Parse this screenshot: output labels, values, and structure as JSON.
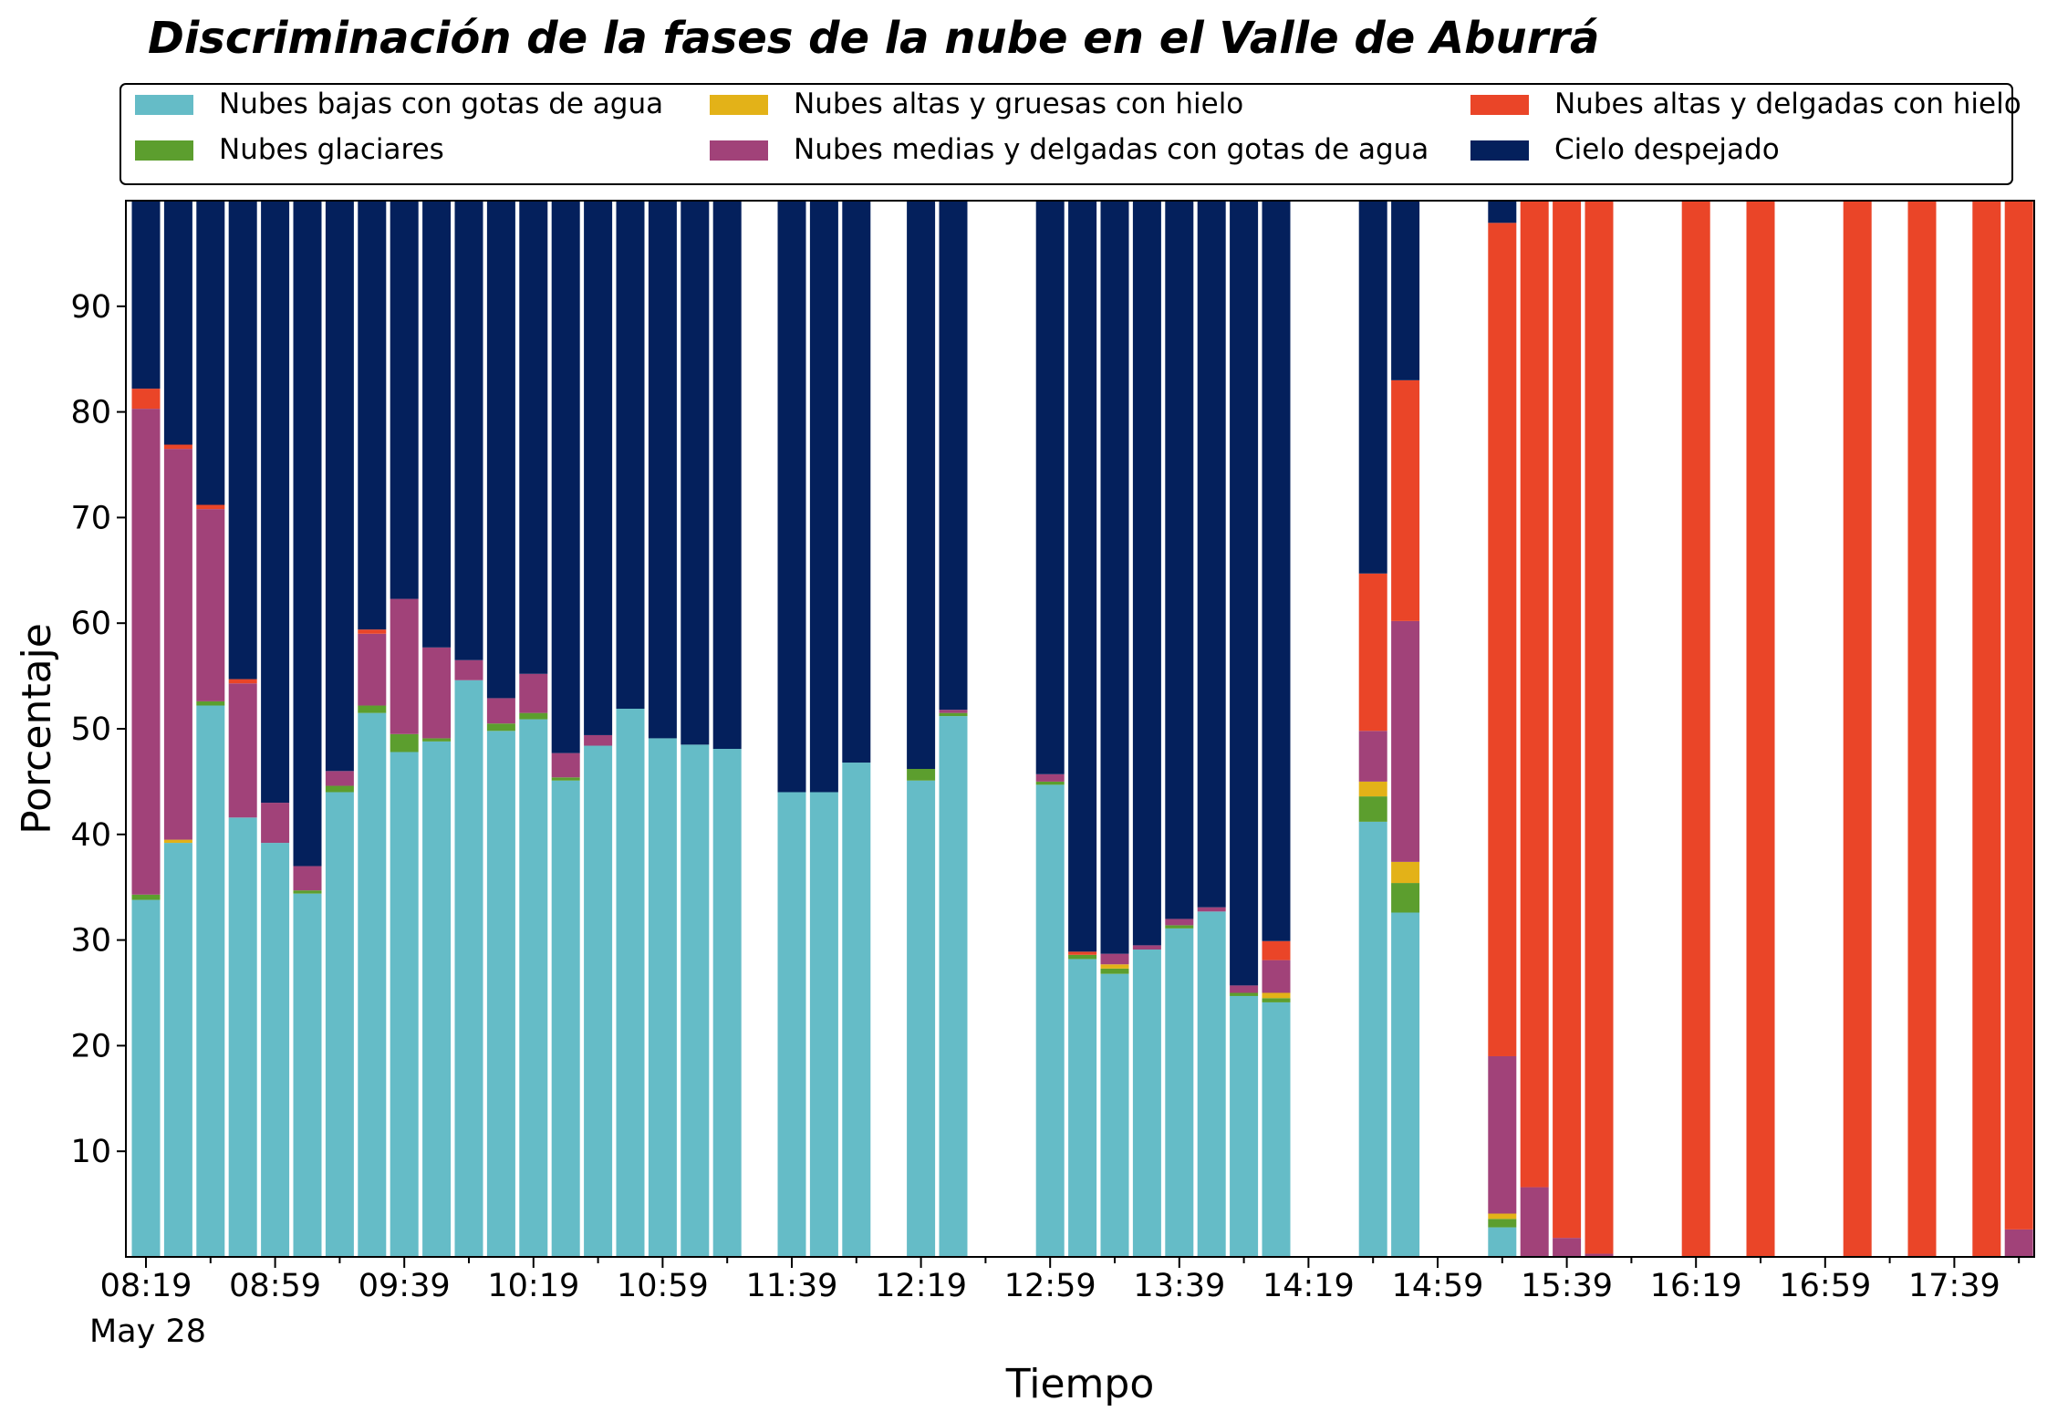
{
  "chart_data": {
    "type": "bar",
    "stacked": true,
    "title": "Discriminación de la fases de la nube en el Valle de Aburrá",
    "xlabel": "Tiempo",
    "ylabel": "Porcentaje",
    "date_label": "May 28",
    "ylim": [
      0,
      100
    ],
    "yticks": [
      10,
      20,
      30,
      40,
      50,
      60,
      70,
      80,
      90
    ],
    "grid": false,
    "legend_placement": "top",
    "x": [
      "08:19",
      "08:29",
      "08:39",
      "08:49",
      "08:59",
      "09:09",
      "09:19",
      "09:29",
      "09:39",
      "09:49",
      "09:59",
      "10:09",
      "10:19",
      "10:29",
      "10:39",
      "10:49",
      "10:59",
      "11:09",
      "11:19",
      "11:29",
      "11:39",
      "11:49",
      "11:59",
      "12:09",
      "12:19",
      "12:29",
      "12:39",
      "12:49",
      "12:59",
      "13:09",
      "13:19",
      "13:29",
      "13:39",
      "13:49",
      "13:59",
      "14:09",
      "14:19",
      "14:29",
      "14:39",
      "14:49",
      "14:59",
      "15:09",
      "15:19",
      "15:29",
      "15:39",
      "15:49",
      "15:59",
      "16:09",
      "16:19",
      "16:29",
      "16:39",
      "16:49",
      "16:59",
      "17:09",
      "17:19",
      "17:29",
      "17:39",
      "17:49",
      "17:59",
      "18:09"
    ],
    "xticks": [
      "08:19",
      "08:59",
      "09:39",
      "10:19",
      "10:59",
      "11:39",
      "12:19",
      "12:59",
      "13:39",
      "14:19",
      "14:59",
      "15:39",
      "16:19",
      "16:59",
      "17:39"
    ],
    "series": [
      {
        "name": "Nubes bajas con gotas de agua",
        "color": "#65bcc7",
        "values": [
          33.8,
          39.2,
          52.2,
          41.6,
          39.2,
          34.4,
          44.0,
          51.5,
          47.8,
          48.8,
          54.6,
          49.8,
          50.9,
          45.1,
          48.4,
          51.9,
          49.1,
          48.5,
          48.1,
          null,
          44.0,
          44.0,
          46.8,
          null,
          45.1,
          51.2,
          null,
          null,
          44.7,
          28.2,
          26.8,
          29.1,
          31.1,
          32.7,
          24.7,
          24.1,
          null,
          null,
          41.2,
          32.6,
          null,
          null,
          2.8,
          0,
          0,
          0,
          null,
          null,
          0,
          null,
          0,
          null,
          null,
          0,
          null,
          0,
          null,
          0,
          0,
          null
        ]
      },
      {
        "name": "Nubes glaciares",
        "color": "#5c9e2e",
        "values": [
          0.5,
          0,
          0.4,
          0,
          0,
          0.3,
          0.6,
          0.7,
          1.7,
          0.3,
          0,
          0.7,
          0.6,
          0.3,
          0,
          0,
          0,
          0,
          0,
          null,
          0,
          0,
          0,
          null,
          1.1,
          0.3,
          null,
          null,
          0.3,
          0.4,
          0.5,
          0,
          0.3,
          0,
          0.3,
          0.4,
          null,
          null,
          2.4,
          2.8,
          null,
          null,
          0.8,
          0,
          0,
          0,
          null,
          null,
          0,
          null,
          0,
          null,
          null,
          0,
          null,
          0,
          null,
          0,
          0,
          null
        ]
      },
      {
        "name": "Nubes altas y gruesas con hielo",
        "color": "#e3b218",
        "values": [
          0,
          0.3,
          0,
          0,
          0,
          0,
          0,
          0,
          0,
          0,
          0,
          0,
          0,
          0,
          0,
          0,
          0,
          0,
          0,
          null,
          0,
          0,
          0,
          null,
          0,
          0,
          null,
          null,
          0,
          0,
          0.4,
          0,
          0,
          0,
          0,
          0.5,
          null,
          null,
          1.4,
          2.0,
          null,
          null,
          0.5,
          0,
          0,
          0,
          null,
          null,
          0,
          null,
          0,
          null,
          null,
          0,
          null,
          0,
          null,
          0,
          0,
          null
        ]
      },
      {
        "name": "Nubes medias y delgadas con gotas de agua",
        "color": "#a14279",
        "values": [
          46.0,
          37.0,
          18.2,
          12.7,
          3.8,
          2.3,
          1.4,
          6.8,
          12.8,
          8.6,
          1.9,
          2.4,
          3.7,
          2.3,
          1.0,
          0,
          0,
          0,
          0,
          null,
          0,
          0,
          0,
          null,
          0,
          0.3,
          null,
          null,
          0.7,
          0,
          1.0,
          0.4,
          0.6,
          0.4,
          0.7,
          3.1,
          null,
          null,
          4.8,
          22.8,
          null,
          null,
          14.9,
          6.6,
          1.8,
          0.3,
          null,
          null,
          0,
          null,
          0,
          null,
          null,
          0,
          null,
          0,
          null,
          0,
          2.6,
          null
        ]
      },
      {
        "name": "Nubes altas y delgadas con hielo",
        "color": "#ea4528",
        "values": [
          1.9,
          0.4,
          0.4,
          0.4,
          0,
          0,
          0,
          0.4,
          0,
          0,
          0,
          0,
          0,
          0,
          0,
          0,
          0,
          0,
          0,
          null,
          0,
          0,
          0,
          null,
          0,
          0,
          null,
          null,
          0,
          0.3,
          0,
          0,
          0,
          0,
          0,
          1.8,
          null,
          null,
          14.9,
          22.8,
          null,
          null,
          78.9,
          93.4,
          98.2,
          99.7,
          null,
          null,
          100,
          null,
          100,
          null,
          null,
          100,
          null,
          100,
          null,
          100,
          97.4,
          null
        ]
      },
      {
        "name": "Cielo despejado",
        "color": "#04205c",
        "values": [
          17.8,
          23.1,
          28.8,
          45.3,
          57.0,
          63.0,
          54.0,
          40.6,
          37.7,
          42.3,
          43.5,
          47.1,
          44.8,
          52.3,
          50.6,
          48.1,
          50.9,
          51.5,
          51.9,
          null,
          56.0,
          56.0,
          53.2,
          null,
          53.8,
          48.2,
          null,
          null,
          54.3,
          71.1,
          71.3,
          70.5,
          68.0,
          66.9,
          74.3,
          70.1,
          null,
          null,
          35.3,
          17.0,
          null,
          null,
          2.1,
          0,
          0,
          0,
          null,
          null,
          0,
          null,
          0,
          null,
          null,
          0,
          null,
          0,
          null,
          0,
          0,
          null
        ]
      }
    ]
  }
}
